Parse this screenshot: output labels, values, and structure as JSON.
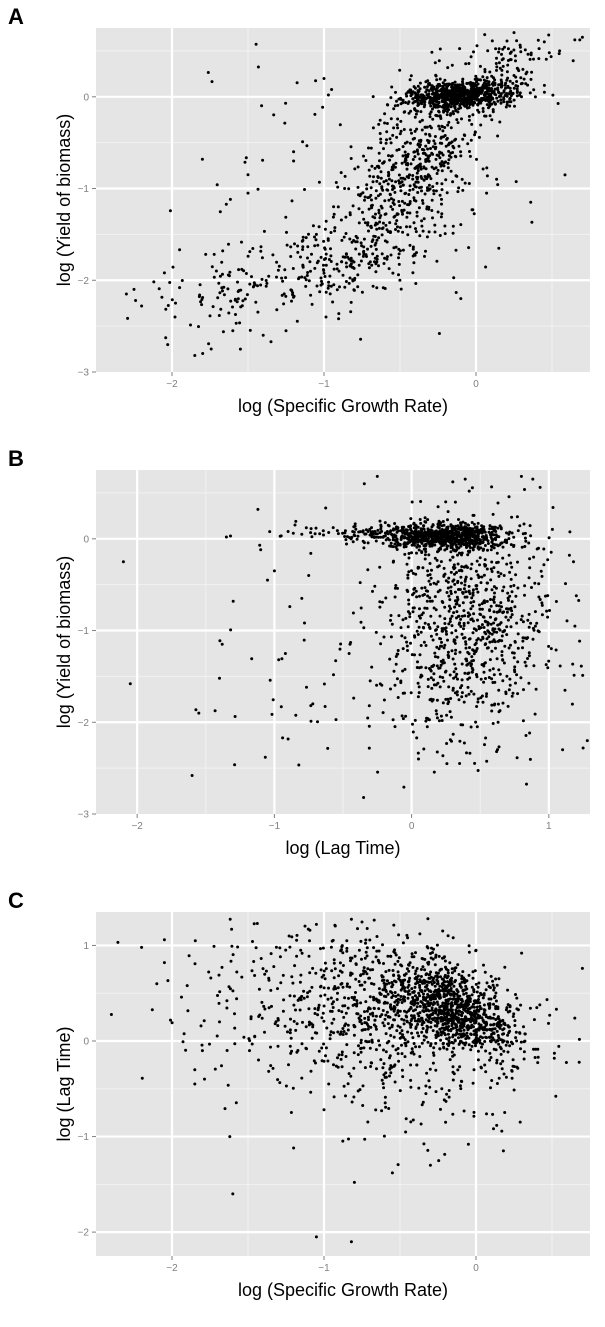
{
  "chart_data": [
    {
      "panel": "A",
      "type": "scatter",
      "xlabel": "log (Specific Growth Rate)",
      "ylabel": "log (Yield of biomass)",
      "xlim": [
        -2.5,
        0.75
      ],
      "ylim": [
        -3.0,
        0.75
      ],
      "xticks": [
        -2,
        -1,
        0
      ],
      "yticks": [
        -3,
        -2,
        -1,
        0
      ],
      "grid": true,
      "n_points": 1800,
      "seed": 11,
      "clusters": [
        {
          "w": 0.4,
          "mx": -0.1,
          "my": 0.02,
          "sx": 0.18,
          "sy": 0.08,
          "r": 0.2
        },
        {
          "w": 0.3,
          "mx": -0.38,
          "my": -0.7,
          "sx": 0.22,
          "sy": 0.45,
          "r": 0.55
        },
        {
          "w": 0.13,
          "mx": -0.75,
          "my": -1.65,
          "sx": 0.32,
          "sy": 0.35,
          "r": 0.5
        },
        {
          "w": 0.08,
          "mx": -1.45,
          "my": -2.0,
          "sx": 0.4,
          "sy": 0.3,
          "r": 0.5
        },
        {
          "w": 0.05,
          "mx": 0.22,
          "my": 0.35,
          "sx": 0.15,
          "sy": 0.2,
          "r": 0.4
        },
        {
          "w": 0.04,
          "mx": -0.6,
          "my": -1.0,
          "sx": 0.7,
          "sy": 0.8,
          "r": 0.0
        }
      ],
      "points": [
        [
          -2.3,
          -2.15
        ],
        [
          -2.25,
          -2.1
        ],
        [
          -2.2,
          -2.28
        ],
        [
          -2.05,
          -1.92
        ],
        [
          -1.98,
          -2.4
        ],
        [
          -1.85,
          -2.82
        ],
        [
          -1.8,
          -0.68
        ],
        [
          -1.55,
          -2.75
        ],
        [
          -1.5,
          -1.05
        ],
        [
          -1.5,
          -0.85
        ],
        [
          -1.2,
          -0.6
        ],
        [
          -1.2,
          -0.7
        ],
        [
          -1.0,
          0.2
        ],
        [
          -1.05,
          -1.5
        ],
        [
          -0.95,
          0.08
        ],
        [
          0.7,
          0.65
        ],
        [
          0.65,
          0.62
        ],
        [
          0.55,
          0.5
        ],
        [
          0.45,
          0.05
        ],
        [
          0.36,
          -1.15
        ],
        [
          0.15,
          -1.65
        ],
        [
          -0.1,
          -2.2
        ],
        [
          0.07,
          -1.05
        ],
        [
          -1.95,
          -2.08
        ],
        [
          -1.4,
          -2.6
        ],
        [
          -1.6,
          -2.55
        ],
        [
          -1.25,
          -2.55
        ],
        [
          0.25,
          0.7
        ]
      ]
    },
    {
      "panel": "B",
      "type": "scatter",
      "xlabel": "log (Lag Time)",
      "ylabel": "log (Yield of biomass)",
      "xlim": [
        -2.3,
        1.3
      ],
      "ylim": [
        -3.0,
        0.75
      ],
      "xticks": [
        -2,
        -1,
        0,
        1
      ],
      "yticks": [
        -3,
        -2,
        -1,
        0
      ],
      "grid": true,
      "n_points": 1800,
      "seed": 29,
      "clusters": [
        {
          "w": 0.42,
          "mx": 0.25,
          "my": 0.02,
          "sx": 0.22,
          "sy": 0.08,
          "r": 0.0
        },
        {
          "w": 0.46,
          "mx": 0.42,
          "my": -0.95,
          "sx": 0.3,
          "sy": 0.62,
          "r": 0.1
        },
        {
          "w": 0.05,
          "mx": -0.3,
          "my": 0.05,
          "sx": 0.3,
          "sy": 0.05,
          "r": 0.0
        },
        {
          "w": 0.07,
          "mx": -0.3,
          "my": -1.4,
          "sx": 0.55,
          "sy": 0.7,
          "r": 0.0
        }
      ],
      "points": [
        [
          -2.1,
          -0.25
        ],
        [
          -2.05,
          -1.58
        ],
        [
          -1.6,
          -2.58
        ],
        [
          -1.4,
          -1.52
        ],
        [
          -1.38,
          -1.15
        ],
        [
          -1.35,
          0.02
        ],
        [
          -1.32,
          0.03
        ],
        [
          -1.3,
          -0.68
        ],
        [
          -1.12,
          0.32
        ],
        [
          -1.1,
          -0.12
        ],
        [
          -1.05,
          -0.45
        ],
        [
          -1.0,
          -0.35
        ],
        [
          -0.95,
          -1.83
        ],
        [
          -0.92,
          -1.25
        ],
        [
          -0.9,
          0.08
        ],
        [
          -0.85,
          0.15
        ],
        [
          -0.8,
          0.05
        ],
        [
          -0.8,
          -0.65
        ],
        [
          -0.75,
          -0.4
        ],
        [
          -0.72,
          -1.8
        ],
        [
          -0.35,
          -2.82
        ],
        [
          1.15,
          -0.18
        ],
        [
          1.18,
          -0.25
        ],
        [
          1.2,
          -0.62
        ],
        [
          1.25,
          -2.28
        ],
        [
          1.28,
          -2.2
        ],
        [
          1.1,
          -2.3
        ],
        [
          0.8,
          0.68
        ],
        [
          -0.25,
          0.68
        ],
        [
          0.42,
          0.52
        ],
        [
          0.3,
          0.62
        ],
        [
          0.35,
          -2.45
        ],
        [
          0.05,
          -2.4
        ]
      ]
    },
    {
      "panel": "C",
      "type": "scatter",
      "xlabel": "log (Specific Growth Rate)",
      "ylabel": "log (Lag Time)",
      "xlim": [
        -2.5,
        0.75
      ],
      "ylim": [
        -2.25,
        1.35
      ],
      "xticks": [
        -2,
        -1,
        0
      ],
      "yticks": [
        -2,
        -1,
        0,
        1
      ],
      "grid": true,
      "n_points": 1800,
      "seed": 47,
      "clusters": [
        {
          "w": 0.45,
          "mx": -0.12,
          "my": 0.3,
          "sx": 0.2,
          "sy": 0.22,
          "r": -0.5
        },
        {
          "w": 0.4,
          "mx": -0.5,
          "my": 0.35,
          "sx": 0.38,
          "sy": 0.38,
          "r": -0.2
        },
        {
          "w": 0.1,
          "mx": -1.25,
          "my": 0.35,
          "sx": 0.45,
          "sy": 0.4,
          "r": 0.0
        },
        {
          "w": 0.05,
          "mx": -0.4,
          "my": -0.55,
          "sx": 0.45,
          "sy": 0.35,
          "r": 0.0
        }
      ],
      "points": [
        [
          -2.2,
          0.98
        ],
        [
          -2.05,
          1.06
        ],
        [
          -2.05,
          0.82
        ],
        [
          -2.1,
          0.6
        ],
        [
          -1.9,
          0.58
        ],
        [
          -1.85,
          -0.45
        ],
        [
          -1.85,
          -0.3
        ],
        [
          -1.8,
          -0.1
        ],
        [
          -1.6,
          -1.6
        ],
        [
          -1.62,
          -1.0
        ],
        [
          -1.2,
          -1.12
        ],
        [
          -1.05,
          -2.05
        ],
        [
          -0.82,
          -2.1
        ],
        [
          -0.8,
          -1.48
        ],
        [
          -1.0,
          -0.72
        ],
        [
          0.7,
          0.76
        ],
        [
          0.65,
          0.24
        ],
        [
          0.4,
          0.35
        ],
        [
          0.3,
          0.92
        ],
        [
          0.2,
          -0.38
        ],
        [
          0.18,
          -1.15
        ],
        [
          -0.05,
          -1.08
        ],
        [
          -0.2,
          -0.85
        ],
        [
          -0.55,
          -1.38
        ],
        [
          -0.3,
          -1.3
        ],
        [
          -1.05,
          1.22
        ],
        [
          -0.85,
          1.05
        ],
        [
          -0.45,
          1.08
        ],
        [
          0.0,
          0.95
        ],
        [
          -0.15,
          1.08
        ]
      ]
    }
  ]
}
